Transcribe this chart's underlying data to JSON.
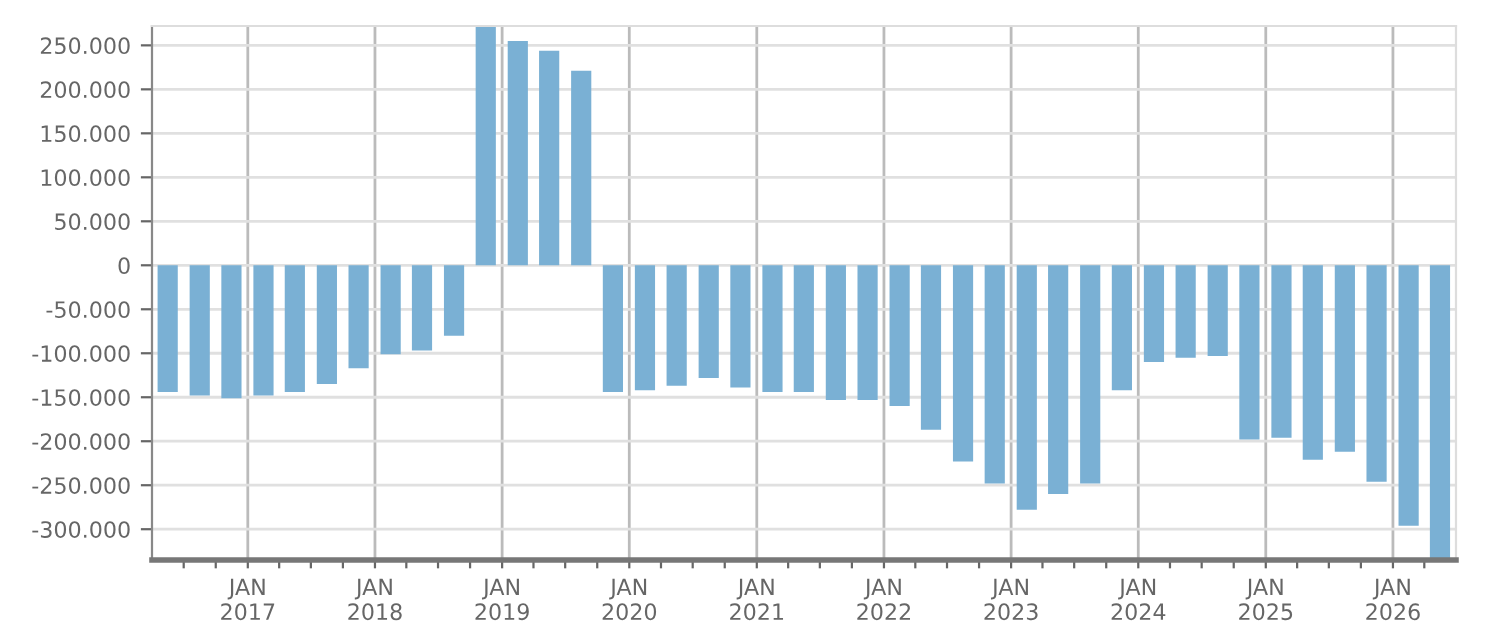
{
  "chart_data": {
    "type": "bar",
    "color": "#7ab0d4",
    "x": [
      "2016-05-16",
      "2016-08-16",
      "2016-11-15",
      "2017-02-15",
      "2017-05-16",
      "2017-08-16",
      "2017-11-15",
      "2018-02-15",
      "2018-05-16",
      "2018-08-16",
      "2018-11-15",
      "2019-02-15",
      "2019-05-16",
      "2019-08-16",
      "2019-11-15",
      "2020-02-15",
      "2020-05-16",
      "2020-08-16",
      "2020-11-15",
      "2021-02-15",
      "2021-05-16",
      "2021-08-16",
      "2021-11-15",
      "2022-02-15",
      "2022-05-16",
      "2022-08-16",
      "2022-11-15",
      "2023-02-15",
      "2023-05-16",
      "2023-08-16",
      "2023-11-15",
      "2024-02-15",
      "2024-05-16",
      "2024-08-16",
      "2024-11-15",
      "2025-02-15",
      "2025-05-16",
      "2025-08-16",
      "2025-11-15",
      "2026-02-15",
      "2026-05-16"
    ],
    "values": [
      -144000,
      -148000,
      -151000,
      -148000,
      -144000,
      -135000,
      -117000,
      -101000,
      -97000,
      -80000,
      271000,
      255000,
      244000,
      221000,
      -144000,
      -142000,
      -137000,
      -128000,
      -139000,
      -144000,
      -144000,
      -153000,
      -153000,
      -160000,
      -187000,
      -223000,
      -248000,
      -278000,
      -260000,
      -248000,
      -142000,
      -110000,
      -105000,
      -103000,
      -198000,
      -196000,
      -221000,
      -212000,
      -246000,
      -296000,
      -333000
    ],
    "xlim": [
      "2016-04-01",
      "2026-07-01"
    ],
    "xticks": [
      {
        "value": "2016-07-01",
        "label": null
      },
      {
        "value": "2016-10-01",
        "label": null
      },
      {
        "value": "2017-01-01",
        "label": "JAN\n2017"
      },
      {
        "value": "2017-04-01",
        "label": null
      },
      {
        "value": "2017-07-01",
        "label": null
      },
      {
        "value": "2017-10-01",
        "label": null
      },
      {
        "value": "2018-01-01",
        "label": "JAN\n2018"
      },
      {
        "value": "2018-04-01",
        "label": null
      },
      {
        "value": "2018-07-01",
        "label": null
      },
      {
        "value": "2018-10-01",
        "label": null
      },
      {
        "value": "2019-01-01",
        "label": "JAN\n2019"
      },
      {
        "value": "2019-04-01",
        "label": null
      },
      {
        "value": "2019-07-01",
        "label": null
      },
      {
        "value": "2019-10-01",
        "label": null
      },
      {
        "value": "2020-01-01",
        "label": "JAN\n2020"
      },
      {
        "value": "2020-04-01",
        "label": null
      },
      {
        "value": "2020-07-01",
        "label": null
      },
      {
        "value": "2020-10-01",
        "label": null
      },
      {
        "value": "2021-01-01",
        "label": "JAN\n2021"
      },
      {
        "value": "2021-04-01",
        "label": null
      },
      {
        "value": "2021-07-01",
        "label": null
      },
      {
        "value": "2021-10-01",
        "label": null
      },
      {
        "value": "2022-01-01",
        "label": "JAN\n2022"
      },
      {
        "value": "2022-04-01",
        "label": null
      },
      {
        "value": "2022-07-01",
        "label": null
      },
      {
        "value": "2022-10-01",
        "label": null
      },
      {
        "value": "2023-01-01",
        "label": "JAN\n2023"
      },
      {
        "value": "2023-04-01",
        "label": null
      },
      {
        "value": "2023-07-01",
        "label": null
      },
      {
        "value": "2023-10-01",
        "label": null
      },
      {
        "value": "2024-01-01",
        "label": "JAN\n2024"
      },
      {
        "value": "2024-04-01",
        "label": null
      },
      {
        "value": "2024-07-01",
        "label": null
      },
      {
        "value": "2024-10-01",
        "label": null
      },
      {
        "value": "2025-01-01",
        "label": "JAN\n2025"
      },
      {
        "value": "2025-04-01",
        "label": null
      },
      {
        "value": "2025-07-01",
        "label": null
      },
      {
        "value": "2025-10-01",
        "label": null
      },
      {
        "value": "2026-01-01",
        "label": "JAN\n2026"
      },
      {
        "value": "2026-04-01",
        "label": null
      }
    ],
    "ylim": [
      -335000,
      272000
    ],
    "yticks": [
      {
        "value": -300000,
        "label": "-300.000"
      },
      {
        "value": -250000,
        "label": "-250.000"
      },
      {
        "value": -200000,
        "label": "-200.000"
      },
      {
        "value": -150000,
        "label": "-150.000"
      },
      {
        "value": -100000,
        "label": "-100.000"
      },
      {
        "value": -50000,
        "label": "-50.000"
      },
      0,
      {
        "value": 50000,
        "label": "50.000"
      },
      {
        "value": 100000,
        "label": "100.000"
      },
      {
        "value": 150000,
        "label": "150.000"
      },
      {
        "value": 200000,
        "label": "200.000"
      },
      {
        "value": 250000,
        "label": "250.000"
      }
    ],
    "grid": true
  }
}
